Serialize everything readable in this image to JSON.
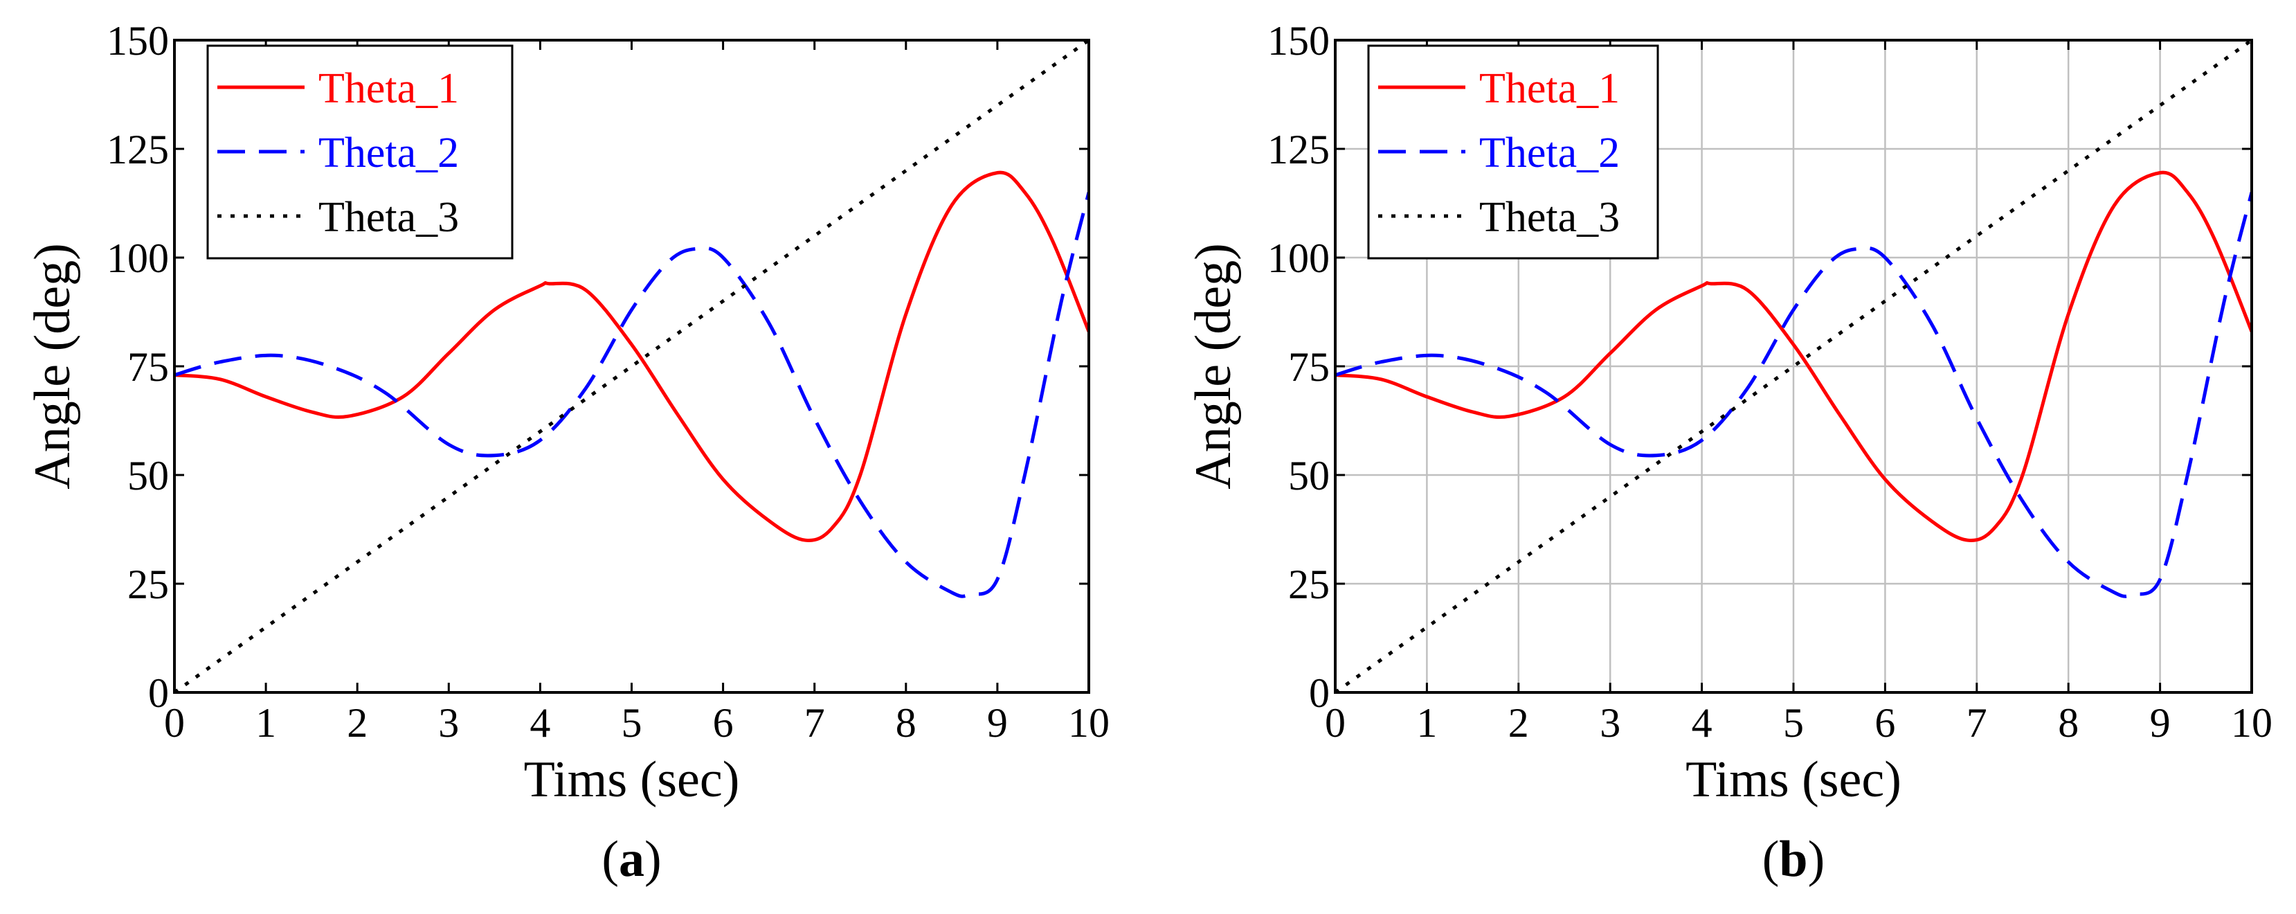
{
  "chart_data": [
    {
      "type": "line",
      "panel": "a",
      "caption": "(a)",
      "caption_letter": "a",
      "xlabel": "Tims (sec)",
      "ylabel": "Angle (deg)",
      "xlim": [
        0,
        10
      ],
      "ylim": [
        0,
        150
      ],
      "xticks": [
        "0",
        "1",
        "2",
        "3",
        "4",
        "5",
        "6",
        "7",
        "8",
        "9",
        "10"
      ],
      "yticks": [
        "0",
        "25",
        "50",
        "75",
        "100",
        "125",
        "150"
      ],
      "grid": false,
      "legend_position": "top-left",
      "series": [
        {
          "name": "Theta_1",
          "color": "#ff0000",
          "style": "solid",
          "x": [
            0,
            0.5,
            1,
            1.5,
            1.9,
            2.5,
            3,
            3.5,
            4,
            4.1,
            4.5,
            5,
            5.5,
            6,
            6.5,
            6.9,
            7.2,
            7.5,
            8,
            8.5,
            9,
            9.3,
            9.6,
            10
          ],
          "y": [
            73,
            72,
            68,
            64.5,
            63.5,
            68,
            78,
            88,
            93.5,
            94,
            92.5,
            80,
            64,
            49,
            39.5,
            35,
            38,
            50,
            87,
            112,
            119.5,
            115,
            104,
            83
          ]
        },
        {
          "name": "Theta_2",
          "color": "#0000ff",
          "style": "dashed",
          "x": [
            0,
            0.5,
            1.1,
            1.7,
            2.3,
            3,
            3.5,
            4,
            4.5,
            5,
            5.4,
            5.7,
            6,
            6.5,
            7,
            7.5,
            8,
            8.5,
            8.7,
            9,
            9.3,
            9.7,
            10
          ],
          "y": [
            73,
            76,
            77.5,
            75,
            69,
            57,
            54.5,
            58,
            70,
            88,
            99,
            102,
            100,
            85,
            63,
            44,
            30,
            23,
            22.5,
            26,
            50,
            90,
            115
          ]
        },
        {
          "name": "Theta_3",
          "color": "#000000",
          "style": "dotted",
          "x": [
            0,
            10
          ],
          "y": [
            0,
            150
          ]
        }
      ]
    },
    {
      "type": "line",
      "panel": "b",
      "caption": "(b)",
      "caption_letter": "b",
      "xlabel": "Tims (sec)",
      "ylabel": "Angle (deg)",
      "xlim": [
        0,
        10
      ],
      "ylim": [
        0,
        150
      ],
      "xticks": [
        "0",
        "1",
        "2",
        "3",
        "4",
        "5",
        "6",
        "7",
        "8",
        "9",
        "10"
      ],
      "yticks": [
        "0",
        "25",
        "50",
        "75",
        "100",
        "125",
        "150"
      ],
      "grid": true,
      "legend_position": "top-left",
      "series": [
        {
          "name": "Theta_1",
          "color": "#ff0000",
          "style": "solid",
          "x": [
            0,
            0.5,
            1,
            1.5,
            1.9,
            2.5,
            3,
            3.5,
            4,
            4.1,
            4.5,
            5,
            5.5,
            6,
            6.5,
            6.9,
            7.2,
            7.5,
            8,
            8.5,
            9,
            9.3,
            9.6,
            10
          ],
          "y": [
            73,
            72,
            68,
            64.5,
            63.5,
            68,
            78,
            88,
            93.5,
            94,
            92.5,
            80,
            64,
            49,
            39.5,
            35,
            38,
            50,
            87,
            112,
            119.5,
            115,
            104,
            83
          ]
        },
        {
          "name": "Theta_2",
          "color": "#0000ff",
          "style": "dashed",
          "x": [
            0,
            0.5,
            1.1,
            1.7,
            2.3,
            3,
            3.5,
            4,
            4.5,
            5,
            5.4,
            5.7,
            6,
            6.5,
            7,
            7.5,
            8,
            8.5,
            8.7,
            9,
            9.3,
            9.7,
            10
          ],
          "y": [
            73,
            76,
            77.5,
            75,
            69,
            57,
            54.5,
            58,
            70,
            88,
            99,
            102,
            100,
            85,
            63,
            44,
            30,
            23,
            22.5,
            26,
            50,
            90,
            115
          ]
        },
        {
          "name": "Theta_3",
          "color": "#000000",
          "style": "dotted",
          "x": [
            0,
            10
          ],
          "y": [
            0,
            150
          ]
        }
      ]
    }
  ]
}
